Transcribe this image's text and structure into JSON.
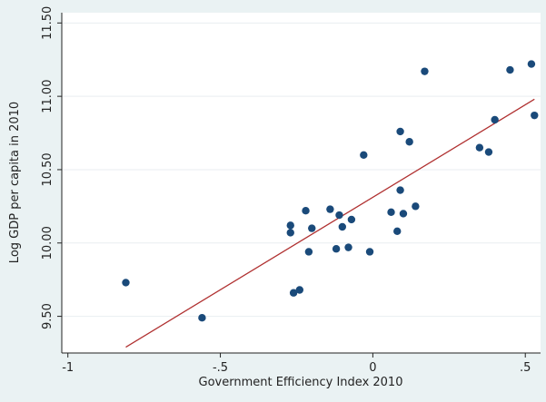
{
  "chart_data": {
    "type": "scatter",
    "title": "",
    "xlabel": "Government Efficiency Index 2010",
    "ylabel": "Log GDP per capita in 2010",
    "xlim": [
      -1.02,
      0.55
    ],
    "ylim": [
      9.25,
      11.57
    ],
    "xticks": [
      -1,
      -0.5,
      0,
      0.5
    ],
    "xtick_labels": [
      "-1",
      "-.5",
      "0",
      ".5"
    ],
    "yticks": [
      9.5,
      10.0,
      10.5,
      11.0,
      11.5
    ],
    "ytick_labels": [
      "9.50",
      "10.00",
      "10.50",
      "11.00",
      "11.50"
    ],
    "grid": true,
    "colors": {
      "points": "#1a4a7a",
      "fit": "#b03030",
      "plot_bg": "#ffffff",
      "page_bg": "#eaf2f3"
    },
    "series": [
      {
        "type": "scatter",
        "x": [
          -0.81,
          -0.56,
          -0.27,
          -0.27,
          -0.26,
          -0.24,
          -0.22,
          -0.21,
          -0.2,
          -0.14,
          -0.12,
          -0.11,
          -0.1,
          -0.08,
          -0.07,
          -0.03,
          -0.01,
          0.06,
          0.08,
          0.09,
          0.09,
          0.1,
          0.12,
          0.14,
          0.17,
          0.35,
          0.38,
          0.4,
          0.45,
          0.52,
          0.53
        ],
        "y": [
          9.73,
          9.49,
          10.12,
          10.07,
          9.66,
          9.68,
          10.22,
          9.94,
          10.1,
          10.23,
          9.96,
          10.19,
          10.11,
          9.97,
          10.16,
          10.6,
          9.94,
          10.21,
          10.08,
          10.36,
          10.76,
          10.2,
          10.69,
          10.25,
          11.17,
          10.65,
          10.62,
          10.84,
          11.18,
          11.22,
          10.87
        ]
      },
      {
        "type": "line",
        "x": [
          -0.81,
          0.53
        ],
        "y": [
          9.29,
          10.98
        ]
      }
    ]
  }
}
